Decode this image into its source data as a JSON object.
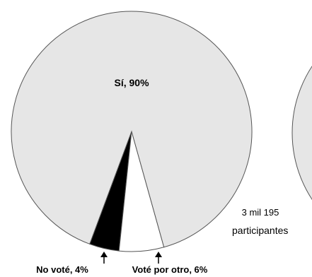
{
  "chart_data": [
    {
      "type": "pie",
      "slices": [
        {
          "label": "Sí",
          "display": "Sí, 90%",
          "value": 90,
          "color": "#e6e6e6"
        },
        {
          "label": "No voté",
          "display": "No voté, 4%",
          "value": 4,
          "color": "#000000"
        },
        {
          "label": "Voté por otro",
          "display": "Voté por otro, 6%",
          "value": 6,
          "color": "#ffffff"
        }
      ]
    },
    {
      "type": "pie",
      "slices": [
        {
          "label": "",
          "value": 100,
          "color": "#e6e6e6"
        }
      ]
    }
  ],
  "participants": {
    "count": "3 mil 195",
    "label": "participantes"
  },
  "colors": {
    "stroke": "#555555",
    "text": "#000000",
    "arrow": "#000000"
  }
}
